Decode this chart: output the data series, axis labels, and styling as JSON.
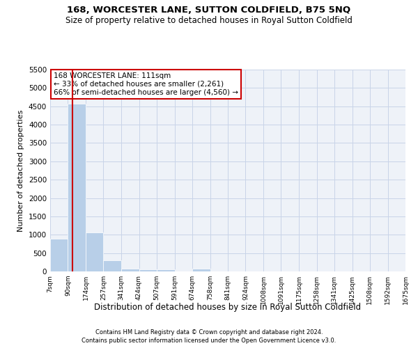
{
  "title1": "168, WORCESTER LANE, SUTTON COLDFIELD, B75 5NQ",
  "title2": "Size of property relative to detached houses in Royal Sutton Coldfield",
  "xlabel": "Distribution of detached houses by size in Royal Sutton Coldfield",
  "ylabel": "Number of detached properties",
  "footnote1": "Contains HM Land Registry data © Crown copyright and database right 2024.",
  "footnote2": "Contains public sector information licensed under the Open Government Licence v3.0.",
  "annotation_line1": "168 WORCESTER LANE: 111sqm",
  "annotation_line2": "← 33% of detached houses are smaller (2,261)",
  "annotation_line3": "66% of semi-detached houses are larger (4,560) →",
  "property_sqm": 111,
  "bin_edges": [
    7,
    90,
    174,
    257,
    341,
    424,
    507,
    591,
    674,
    758,
    841,
    924,
    1008,
    1091,
    1175,
    1258,
    1341,
    1425,
    1508,
    1592,
    1675
  ],
  "bin_labels": [
    "7sqm",
    "90sqm",
    "174sqm",
    "257sqm",
    "341sqm",
    "424sqm",
    "507sqm",
    "591sqm",
    "674sqm",
    "758sqm",
    "841sqm",
    "924sqm",
    "1008sqm",
    "1091sqm",
    "1175sqm",
    "1258sqm",
    "1341sqm",
    "1425sqm",
    "1508sqm",
    "1592sqm",
    "1675sqm"
  ],
  "bar_values": [
    900,
    4580,
    1070,
    300,
    80,
    60,
    50,
    0,
    70,
    0,
    0,
    0,
    0,
    0,
    0,
    0,
    0,
    0,
    0,
    0
  ],
  "bar_color": "#b8cfe8",
  "bar_edgecolor": "white",
  "red_line_color": "#cc0000",
  "grid_color": "#c8d4e8",
  "background_color": "#eef2f8",
  "annotation_box_color": "#ffffff",
  "annotation_border_color": "#cc0000",
  "ylim": [
    0,
    5500
  ],
  "yticks": [
    0,
    500,
    1000,
    1500,
    2000,
    2500,
    3000,
    3500,
    4000,
    4500,
    5000,
    5500
  ],
  "title1_fontsize": 9.5,
  "title2_fontsize": 8.5,
  "ylabel_fontsize": 8,
  "xlabel_fontsize": 8.5,
  "footnote_fontsize": 6,
  "annot_fontsize": 7.5
}
